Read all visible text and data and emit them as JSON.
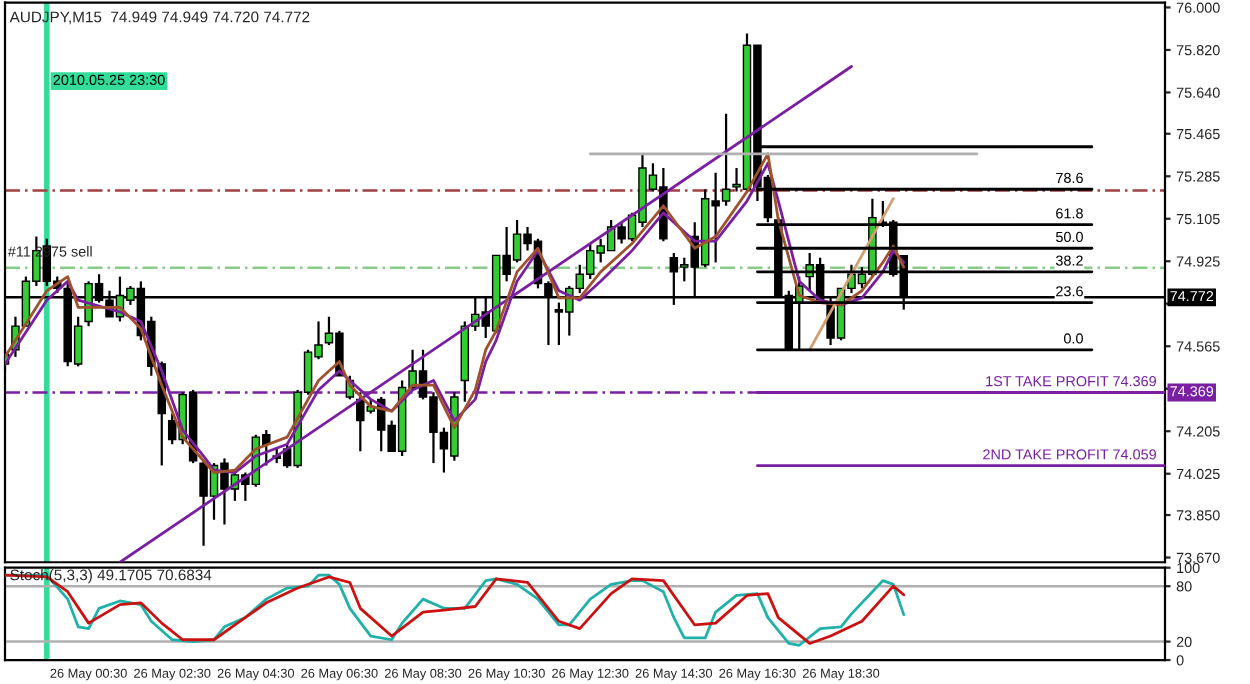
{
  "chart_data": [
    {
      "type": "candlestick",
      "title": "AUDJPY,M15  74.949 74.949 74.720 74.772",
      "x": [
        "2010-05-25T22:30",
        "2010-05-25T22:45",
        "2010-05-25T23:00",
        "2010-05-25T23:15",
        "2010-05-25T23:30",
        "2010-05-25T23:45",
        "2010-05-26T00:00",
        "2010-05-26T00:15",
        "2010-05-26T00:30",
        "2010-05-26T00:45",
        "2010-05-26T01:00",
        "2010-05-26T01:15",
        "2010-05-26T01:30",
        "2010-05-26T01:45",
        "2010-05-26T02:00",
        "2010-05-26T02:15",
        "2010-05-26T02:30",
        "2010-05-26T02:45",
        "2010-05-26T03:00",
        "2010-05-26T03:15",
        "2010-05-26T03:30",
        "2010-05-26T03:45",
        "2010-05-26T04:00",
        "2010-05-26T04:15",
        "2010-05-26T04:30",
        "2010-05-26T04:45",
        "2010-05-26T05:00",
        "2010-05-26T05:15",
        "2010-05-26T05:30",
        "2010-05-26T05:45",
        "2010-05-26T06:00",
        "2010-05-26T06:15",
        "2010-05-26T06:30",
        "2010-05-26T06:45",
        "2010-05-26T07:00",
        "2010-05-26T07:15",
        "2010-05-26T07:30",
        "2010-05-26T07:45",
        "2010-05-26T08:00",
        "2010-05-26T08:15",
        "2010-05-26T08:30",
        "2010-05-26T08:45",
        "2010-05-26T09:00",
        "2010-05-26T09:15",
        "2010-05-26T09:30",
        "2010-05-26T09:45",
        "2010-05-26T10:00",
        "2010-05-26T10:15",
        "2010-05-26T10:30",
        "2010-05-26T10:45",
        "2010-05-26T11:00",
        "2010-05-26T11:15",
        "2010-05-26T11:30",
        "2010-05-26T11:45",
        "2010-05-26T12:00",
        "2010-05-26T12:15",
        "2010-05-26T12:30",
        "2010-05-26T12:45",
        "2010-05-26T13:00",
        "2010-05-26T13:15",
        "2010-05-26T13:30",
        "2010-05-26T13:45",
        "2010-05-26T14:00",
        "2010-05-26T14:15",
        "2010-05-26T14:30",
        "2010-05-26T14:45",
        "2010-05-26T15:00",
        "2010-05-26T15:15",
        "2010-05-26T15:30",
        "2010-05-26T15:45",
        "2010-05-26T16:00",
        "2010-05-26T16:15",
        "2010-05-26T16:30",
        "2010-05-26T16:45",
        "2010-05-26T17:00",
        "2010-05-26T17:15",
        "2010-05-26T17:30",
        "2010-05-26T17:45",
        "2010-05-26T18:00",
        "2010-05-26T18:15",
        "2010-05-26T18:30",
        "2010-05-26T18:45",
        "2010-05-26T19:00",
        "2010-05-26T19:15",
        "2010-05-26T19:30",
        "2010-05-26T19:45",
        "2010-05-26T20:00"
      ],
      "ohlc": [
        [
          74.49,
          74.55,
          74.46,
          74.53
        ],
        [
          74.55,
          74.69,
          74.52,
          74.65
        ],
        [
          74.65,
          74.86,
          74.65,
          74.84
        ],
        [
          74.84,
          75.03,
          74.82,
          74.97
        ],
        [
          74.99,
          75.02,
          74.82,
          74.84
        ],
        [
          74.84,
          74.86,
          74.79,
          74.81
        ],
        [
          74.81,
          74.84,
          74.48,
          74.5
        ],
        [
          74.49,
          74.69,
          74.48,
          74.65
        ],
        [
          74.67,
          74.84,
          74.65,
          74.83
        ],
        [
          74.83,
          74.87,
          74.75,
          74.76
        ],
        [
          74.76,
          74.8,
          74.69,
          74.69
        ],
        [
          74.69,
          74.86,
          74.67,
          74.78
        ],
        [
          74.76,
          74.82,
          74.74,
          74.81
        ],
        [
          74.81,
          74.84,
          74.59,
          74.61
        ],
        [
          74.67,
          74.69,
          74.44,
          74.48
        ],
        [
          74.49,
          74.5,
          74.06,
          74.28
        ],
        [
          74.25,
          74.28,
          74.15,
          74.17
        ],
        [
          74.17,
          74.37,
          74.15,
          74.36
        ],
        [
          74.37,
          74.38,
          74.07,
          74.08
        ],
        [
          74.07,
          74.08,
          73.72,
          73.93
        ],
        [
          73.93,
          74.07,
          73.83,
          74.06
        ],
        [
          74.07,
          74.09,
          73.81,
          73.96
        ],
        [
          73.96,
          74.04,
          73.91,
          74.02
        ],
        [
          74.02,
          74.03,
          73.91,
          73.98
        ],
        [
          73.98,
          74.19,
          73.97,
          74.18
        ],
        [
          74.19,
          74.21,
          74.06,
          74.15
        ],
        [
          74.1,
          74.13,
          74.07,
          74.09
        ],
        [
          74.13,
          74.15,
          74.05,
          74.06
        ],
        [
          74.06,
          74.38,
          74.05,
          74.37
        ],
        [
          74.37,
          74.55,
          74.36,
          74.54
        ],
        [
          74.52,
          74.67,
          74.51,
          74.57
        ],
        [
          74.58,
          74.69,
          74.57,
          74.62
        ],
        [
          74.62,
          74.63,
          74.44,
          74.44
        ],
        [
          74.35,
          74.44,
          74.34,
          74.42
        ],
        [
          74.34,
          74.37,
          74.12,
          74.25
        ],
        [
          74.29,
          74.34,
          74.28,
          74.31
        ],
        [
          74.34,
          74.35,
          74.12,
          74.21
        ],
        [
          74.23,
          74.25,
          74.12,
          74.12
        ],
        [
          74.12,
          74.42,
          74.1,
          74.39
        ],
        [
          74.39,
          74.55,
          74.38,
          74.46
        ],
        [
          74.46,
          74.55,
          74.34,
          74.35
        ],
        [
          74.35,
          74.37,
          74.07,
          74.2
        ],
        [
          74.2,
          74.22,
          74.03,
          74.13
        ],
        [
          74.1,
          74.37,
          74.08,
          74.35
        ],
        [
          74.42,
          74.67,
          74.33,
          74.65
        ],
        [
          74.65,
          74.77,
          74.63,
          74.7
        ],
        [
          74.71,
          74.77,
          74.6,
          74.65
        ],
        [
          74.63,
          74.95,
          74.62,
          74.95
        ],
        [
          74.95,
          75.07,
          74.84,
          74.87
        ],
        [
          74.93,
          75.1,
          74.92,
          75.04
        ],
        [
          75.04,
          75.07,
          74.97,
          75.0
        ],
        [
          75.01,
          75.02,
          74.81,
          74.83
        ],
        [
          74.83,
          74.84,
          74.57,
          74.78
        ],
        [
          74.72,
          74.75,
          74.57,
          74.71
        ],
        [
          74.71,
          74.82,
          74.61,
          74.81
        ],
        [
          74.81,
          74.91,
          74.79,
          74.87
        ],
        [
          74.87,
          75.0,
          74.85,
          74.97
        ],
        [
          74.96,
          75.02,
          74.92,
          74.99
        ],
        [
          74.97,
          75.1,
          74.97,
          75.07
        ],
        [
          75.07,
          75.09,
          75.0,
          75.02
        ],
        [
          75.02,
          75.13,
          75.01,
          75.12
        ],
        [
          75.09,
          75.38,
          75.07,
          75.32
        ],
        [
          75.23,
          75.34,
          75.22,
          75.29
        ],
        [
          75.24,
          75.32,
          75.01,
          75.02
        ],
        [
          74.94,
          74.96,
          74.74,
          74.88
        ],
        [
          74.9,
          74.94,
          74.84,
          74.91
        ],
        [
          75.03,
          75.09,
          74.77,
          74.9
        ],
        [
          74.91,
          75.23,
          74.9,
          75.19
        ],
        [
          75.18,
          75.3,
          74.92,
          75.16
        ],
        [
          75.18,
          75.55,
          75.16,
          75.23
        ],
        [
          75.24,
          75.32,
          75.22,
          75.25
        ],
        [
          75.23,
          75.89,
          75.22,
          75.84
        ],
        [
          75.84,
          75.84,
          75.18,
          75.24
        ],
        [
          75.28,
          75.29,
          75.09,
          75.11
        ],
        [
          75.1,
          75.11,
          74.78,
          74.78
        ],
        [
          74.78,
          74.8,
          74.55,
          74.55
        ],
        [
          74.75,
          74.86,
          74.55,
          74.82
        ],
        [
          74.86,
          74.96,
          74.8,
          74.91
        ],
        [
          74.91,
          74.94,
          74.75,
          74.75
        ],
        [
          74.75,
          74.77,
          74.57,
          74.6
        ],
        [
          74.6,
          74.81,
          74.59,
          74.81
        ],
        [
          74.81,
          74.91,
          74.79,
          74.87
        ],
        [
          74.83,
          74.9,
          74.81,
          74.87
        ],
        [
          74.87,
          75.19,
          74.86,
          75.11
        ],
        [
          75.09,
          75.18,
          75.07,
          75.08
        ],
        [
          75.09,
          75.1,
          74.86,
          74.87
        ],
        [
          74.949,
          74.949,
          74.72,
          74.772
        ]
      ],
      "colors": [
        "#33cc33",
        "#33cc33",
        "#33cc33",
        "#33cc33",
        "#000000",
        "#000000",
        "#000000",
        "#33cc33",
        "#33cc33",
        "#000000",
        "#000000",
        "#33cc33",
        "#33cc33",
        "#000000",
        "#000000",
        "#000000",
        "#000000",
        "#33cc33",
        "#000000",
        "#000000",
        "#33cc33",
        "#000000",
        "#33cc33",
        "#000000",
        "#33cc33",
        "#000000",
        "#000000",
        "#000000",
        "#33cc33",
        "#33cc33",
        "#33cc33",
        "#33cc33",
        "#000000",
        "#33cc33",
        "#000000",
        "#33cc33",
        "#000000",
        "#000000",
        "#33cc33",
        "#33cc33",
        "#000000",
        "#000000",
        "#000000",
        "#33cc33",
        "#33cc33",
        "#33cc33",
        "#000000",
        "#33cc33",
        "#000000",
        "#33cc33",
        "#000000",
        "#000000",
        "#000000",
        "#000000",
        "#33cc33",
        "#33cc33",
        "#33cc33",
        "#33cc33",
        "#33cc33",
        "#000000",
        "#33cc33",
        "#33cc33",
        "#33cc33",
        "#000000",
        "#000000",
        "#33cc33",
        "#000000",
        "#33cc33",
        "#000000",
        "#33cc33",
        "#33cc33",
        "#33cc33",
        "#000000",
        "#000000",
        "#000000",
        "#000000",
        "#33cc33",
        "#33cc33",
        "#000000",
        "#000000",
        "#33cc33",
        "#33cc33",
        "#33cc33",
        "#33cc33",
        "#000000",
        "#000000",
        "#000000"
      ],
      "series": [
        {
          "type": "line",
          "color": "#7a1fa2",
          "x": [
            "2010-05-26T01:15",
            "2010-05-26T18:45"
          ],
          "values": [
            73.65,
            75.75
          ]
        },
        {
          "type": "line",
          "color": "#7a1fa2",
          "x": [
            "2010-05-25T22:30",
            "2010-05-25T23:30",
            "2010-05-26T00:00",
            "2010-05-26T00:15",
            "2010-05-26T01:15",
            "2010-05-26T01:45",
            "2010-05-26T02:15",
            "2010-05-26T02:45",
            "2010-05-26T03:15",
            "2010-05-26T03:30",
            "2010-05-26T04:00",
            "2010-05-26T04:30",
            "2010-05-26T05:15",
            "2010-05-26T06:00",
            "2010-05-26T06:30",
            "2010-05-26T06:45",
            "2010-05-26T07:15",
            "2010-05-26T07:45",
            "2010-05-26T08:15",
            "2010-05-26T08:45",
            "2010-05-26T09:15",
            "2010-05-26T09:45",
            "2010-05-26T10:00",
            "2010-05-26T10:15",
            "2010-05-26T10:45",
            "2010-05-26T11:15",
            "2010-05-26T11:45",
            "2010-05-26T12:15",
            "2010-05-26T12:45",
            "2010-05-26T13:30",
            "2010-05-26T14:15",
            "2010-05-26T15:00",
            "2010-05-26T15:30",
            "2010-05-26T16:15",
            "2010-05-26T16:45",
            "2010-05-26T17:00",
            "2010-05-26T17:30",
            "2010-05-26T18:00",
            "2010-05-26T18:30",
            "2010-05-26T19:00",
            "2010-05-26T19:30",
            "2010-05-26T19:45",
            "2010-05-26T20:00"
          ],
          "values": [
            74.49,
            74.76,
            74.84,
            74.76,
            74.71,
            74.67,
            74.46,
            74.21,
            74.1,
            74.04,
            74.03,
            74.1,
            74.15,
            74.38,
            74.46,
            74.42,
            74.34,
            74.29,
            74.38,
            74.42,
            74.25,
            74.34,
            74.5,
            74.59,
            74.84,
            74.97,
            74.8,
            74.76,
            74.84,
            74.97,
            75.13,
            75.01,
            75.01,
            75.18,
            75.34,
            75.18,
            74.84,
            74.76,
            74.74,
            74.77,
            74.88,
            74.97,
            74.92
          ]
        },
        {
          "type": "line",
          "color": "#a0522d",
          "x": [
            "2010-05-25T22:30",
            "2010-05-25T23:30",
            "2010-05-26T00:00",
            "2010-05-26T00:15",
            "2010-05-26T01:15",
            "2010-05-26T01:45",
            "2010-05-26T02:15",
            "2010-05-26T02:45",
            "2010-05-26T03:15",
            "2010-05-26T03:30",
            "2010-05-26T04:00",
            "2010-05-26T04:30",
            "2010-05-26T05:15",
            "2010-05-26T06:00",
            "2010-05-26T06:30",
            "2010-05-26T06:45",
            "2010-05-26T07:15",
            "2010-05-26T07:45",
            "2010-05-26T08:15",
            "2010-05-26T08:45",
            "2010-05-26T09:15",
            "2010-05-26T09:45",
            "2010-05-26T10:00",
            "2010-05-26T10:15",
            "2010-05-26T10:45",
            "2010-05-26T11:15",
            "2010-05-26T11:45",
            "2010-05-26T12:15",
            "2010-05-26T12:45",
            "2010-05-26T13:30",
            "2010-05-26T14:15",
            "2010-05-26T15:00",
            "2010-05-26T15:30",
            "2010-05-26T16:15",
            "2010-05-26T16:45",
            "2010-05-26T17:00",
            "2010-05-26T17:30",
            "2010-05-26T18:00",
            "2010-05-26T18:30",
            "2010-05-26T19:00",
            "2010-05-26T19:30",
            "2010-05-26T19:45",
            "2010-05-26T20:00"
          ],
          "values": [
            74.52,
            74.8,
            74.86,
            74.73,
            74.73,
            74.64,
            74.4,
            74.18,
            74.08,
            74.03,
            74.04,
            74.13,
            74.18,
            74.42,
            74.5,
            74.4,
            74.31,
            74.29,
            74.4,
            74.4,
            74.22,
            74.38,
            74.55,
            74.63,
            74.88,
            74.98,
            74.77,
            74.77,
            74.88,
            75.0,
            75.16,
            74.98,
            75.03,
            75.22,
            75.38,
            75.1,
            74.78,
            74.75,
            74.74,
            74.8,
            74.92,
            74.99,
            74.9
          ]
        },
        {
          "type": "line",
          "color": "#b0b0b0",
          "x": [
            "2010-05-26T12:30",
            "2010-05-26T21:45"
          ],
          "values": [
            75.38,
            75.38
          ]
        },
        {
          "type": "line",
          "color": "#d2a070",
          "x": [
            "2010-05-26T17:45",
            "2010-05-26T19:45"
          ],
          "values": [
            74.55,
            75.19
          ]
        },
        {
          "type": "line",
          "color": "#000000",
          "x": [
            "2010-05-26T16:30",
            "2010-05-27T00:30"
          ],
          "values": [
            75.41,
            75.41
          ]
        },
        {
          "type": "line",
          "color": "#000000",
          "name": "78.6",
          "x": [
            "2010-05-26T16:30",
            "2010-05-27T00:30"
          ],
          "values": [
            75.23,
            75.23
          ]
        },
        {
          "type": "line",
          "color": "#000000",
          "name": "61.8",
          "x": [
            "2010-05-26T16:30",
            "2010-05-27T00:30"
          ],
          "values": [
            75.08,
            75.08
          ]
        },
        {
          "type": "line",
          "color": "#000000",
          "name": "50.0",
          "x": [
            "2010-05-26T16:30",
            "2010-05-27T00:30"
          ],
          "values": [
            74.98,
            74.98
          ]
        },
        {
          "type": "line",
          "color": "#000000",
          "name": "38.2",
          "x": [
            "2010-05-26T16:30",
            "2010-05-27T00:30"
          ],
          "values": [
            74.88,
            74.88
          ]
        },
        {
          "type": "line",
          "color": "#000000",
          "name": "23.6",
          "x": [
            "2010-05-26T16:30",
            "2010-05-27T00:30"
          ],
          "values": [
            74.75,
            74.75
          ]
        },
        {
          "type": "line",
          "color": "#000000",
          "name": "0.0",
          "x": [
            "2010-05-26T16:30",
            "2010-05-27T00:30"
          ],
          "values": [
            74.55,
            74.55
          ]
        },
        {
          "type": "line",
          "color": "#7a1fa2",
          "name": "1ST TAKE PROFIT 74.369",
          "x": [
            "2010-05-26T16:30",
            "2010-05-27T02:15"
          ],
          "values": [
            74.369,
            74.369
          ]
        },
        {
          "type": "line",
          "color": "#7a1fa2",
          "name": "2ND TAKE PROFIT 74.059",
          "x": [
            "2010-05-26T16:30",
            "2010-05-27T02:15"
          ],
          "values": [
            74.059,
            74.059
          ]
        }
      ],
      "ref_lines": [
        {
          "axis": "x",
          "value": "2010-05-25T23:30",
          "label": "2010.05.25 23:30",
          "color": "#33dd99"
        },
        {
          "axis": "y",
          "value": 75.225,
          "color": "#a04040",
          "line_style": "dashed"
        },
        {
          "axis": "y",
          "value": 74.897,
          "color": "#88cc88",
          "line_style": "dashed"
        },
        {
          "axis": "y",
          "value": 74.772,
          "label": "74.772",
          "color": "#000000"
        },
        {
          "axis": "y",
          "value": 74.369,
          "label": "74.369",
          "color": "#7a1fa2",
          "line_style": "dashed"
        }
      ],
      "annotations": [
        {
          "text": "#11 2975 sell",
          "x": "2010-05-25T22:30",
          "y": 74.897
        }
      ],
      "xlim": [
        "2010-05-25T22:30",
        "2010-05-27T02:15"
      ],
      "ylim": [
        73.65,
        76.02
      ],
      "yticks": [
        {
          "value": 76.0,
          "label": "76.000"
        },
        {
          "value": 75.82,
          "label": "75.820"
        },
        {
          "value": 75.64,
          "label": "75.640"
        },
        {
          "value": 75.465,
          "label": "75.465"
        },
        {
          "value": 75.285,
          "label": "75.285"
        },
        {
          "value": 75.105,
          "label": "75.105"
        },
        {
          "value": 74.925,
          "label": "74.925"
        },
        {
          "value": 74.745,
          "label": null
        },
        {
          "value": 74.565,
          "label": "74.565"
        },
        {
          "value": 74.385,
          "label": null
        },
        {
          "value": 74.205,
          "label": "74.205"
        },
        {
          "value": 74.025,
          "label": "74.025"
        },
        {
          "value": 73.85,
          "label": "73.850"
        },
        {
          "value": 73.67,
          "label": "73.670"
        }
      ],
      "tick_labels": "y"
    },
    {
      "type": "line",
      "title": "Stoch(5,3,3) 49.1705 70.6834",
      "series": [
        {
          "color": "#20b2aa",
          "x": [
            "2010-05-25T22:30",
            "2010-05-25T23:30",
            "2010-05-26T00:00",
            "2010-05-26T00:15",
            "2010-05-26T00:30",
            "2010-05-26T00:45",
            "2010-05-26T01:15",
            "2010-05-26T01:45",
            "2010-05-26T02:00",
            "2010-05-26T02:30",
            "2010-05-26T03:00",
            "2010-05-26T03:30",
            "2010-05-26T03:45",
            "2010-05-26T04:15",
            "2010-05-26T04:45",
            "2010-05-26T05:15",
            "2010-05-26T05:45",
            "2010-05-26T06:00",
            "2010-05-26T06:15",
            "2010-05-26T06:30",
            "2010-05-26T06:45",
            "2010-05-26T07:15",
            "2010-05-26T07:45",
            "2010-05-26T08:00",
            "2010-05-26T08:30",
            "2010-05-26T09:00",
            "2010-05-26T09:30",
            "2010-05-26T10:00",
            "2010-05-26T10:15",
            "2010-05-26T10:45",
            "2010-05-26T11:15",
            "2010-05-26T11:45",
            "2010-05-26T12:00",
            "2010-05-26T12:30",
            "2010-05-26T13:00",
            "2010-05-26T13:30",
            "2010-05-26T13:45",
            "2010-05-26T14:15",
            "2010-05-26T14:30",
            "2010-05-26T14:45",
            "2010-05-26T15:15",
            "2010-05-26T15:30",
            "2010-05-26T16:00",
            "2010-05-26T16:30",
            "2010-05-26T16:45",
            "2010-05-26T17:15",
            "2010-05-26T17:30",
            "2010-05-26T18:00",
            "2010-05-26T18:30",
            "2010-05-26T18:45",
            "2010-05-26T19:15",
            "2010-05-26T19:30",
            "2010-05-26T19:45",
            "2010-05-26T20:00"
          ],
          "values": [
            92,
            92,
            66,
            36,
            34,
            56,
            64,
            60,
            42,
            22,
            20,
            22,
            36,
            46,
            66,
            78,
            80,
            92,
            92,
            82,
            56,
            26,
            22,
            40,
            66,
            56,
            56,
            86,
            88,
            82,
            66,
            38,
            38,
            66,
            82,
            86,
            86,
            74,
            46,
            24,
            24,
            52,
            70,
            72,
            46,
            18,
            16,
            34,
            36,
            50,
            74,
            86,
            82,
            49.17
          ]
        },
        {
          "color": "#cc1111",
          "x": [
            "2010-05-25T22:30",
            "2010-05-25T23:30",
            "2010-05-26T00:00",
            "2010-05-26T00:30",
            "2010-05-26T01:15",
            "2010-05-26T01:45",
            "2010-05-26T02:15",
            "2010-05-26T02:45",
            "2010-05-26T03:30",
            "2010-05-26T04:00",
            "2010-05-26T04:45",
            "2010-05-26T05:30",
            "2010-05-26T06:15",
            "2010-05-26T06:45",
            "2010-05-26T07:00",
            "2010-05-26T07:45",
            "2010-05-26T08:30",
            "2010-05-26T09:00",
            "2010-05-26T09:45",
            "2010-05-26T10:15",
            "2010-05-26T11:00",
            "2010-05-26T11:45",
            "2010-05-26T12:15",
            "2010-05-26T13:00",
            "2010-05-26T13:30",
            "2010-05-26T14:15",
            "2010-05-26T15:00",
            "2010-05-26T15:30",
            "2010-05-26T16:15",
            "2010-05-26T16:45",
            "2010-05-26T17:00",
            "2010-05-26T17:45",
            "2010-05-26T18:15",
            "2010-05-26T19:00",
            "2010-05-26T19:45",
            "2010-05-26T20:00"
          ],
          "values": [
            92,
            90,
            74,
            40,
            60,
            62,
            40,
            22,
            22,
            38,
            62,
            78,
            90,
            84,
            56,
            26,
            52,
            54,
            58,
            88,
            84,
            42,
            34,
            72,
            88,
            86,
            38,
            40,
            70,
            72,
            46,
            18,
            26,
            42,
            80,
            70.68
          ]
        }
      ],
      "ref_lines": [
        {
          "axis": "x",
          "value": "2010-05-25T23:30",
          "color": "#33dd99"
        },
        {
          "axis": "y",
          "value": 80,
          "color": "#b0b0b0"
        },
        {
          "axis": "y",
          "value": 20,
          "color": "#b0b0b0"
        }
      ],
      "xlim": [
        "2010-05-25T22:30",
        "2010-05-27T02:15"
      ],
      "ylim": [
        0,
        100
      ],
      "yticks": [
        0,
        20,
        80,
        100
      ],
      "xticks": [
        {
          "value": "2010-05-26T00:30",
          "label": "26 May 00:30"
        },
        {
          "value": "2010-05-26T02:30",
          "label": "26 May 02:30"
        },
        {
          "value": "2010-05-26T04:30",
          "label": "26 May 04:30"
        },
        {
          "value": "2010-05-26T06:30",
          "label": "26 May 06:30"
        },
        {
          "value": "2010-05-26T08:30",
          "label": "26 May 08:30"
        },
        {
          "value": "2010-05-26T10:30",
          "label": "26 May 10:30"
        },
        {
          "value": "2010-05-26T12:30",
          "label": "26 May 12:30"
        },
        {
          "value": "2010-05-26T14:30",
          "label": "26 May 14:30"
        },
        {
          "value": "2010-05-26T16:30",
          "label": "26 May 16:30"
        },
        {
          "value": "2010-05-26T18:30",
          "label": "26 May 18:30"
        }
      ]
    }
  ]
}
